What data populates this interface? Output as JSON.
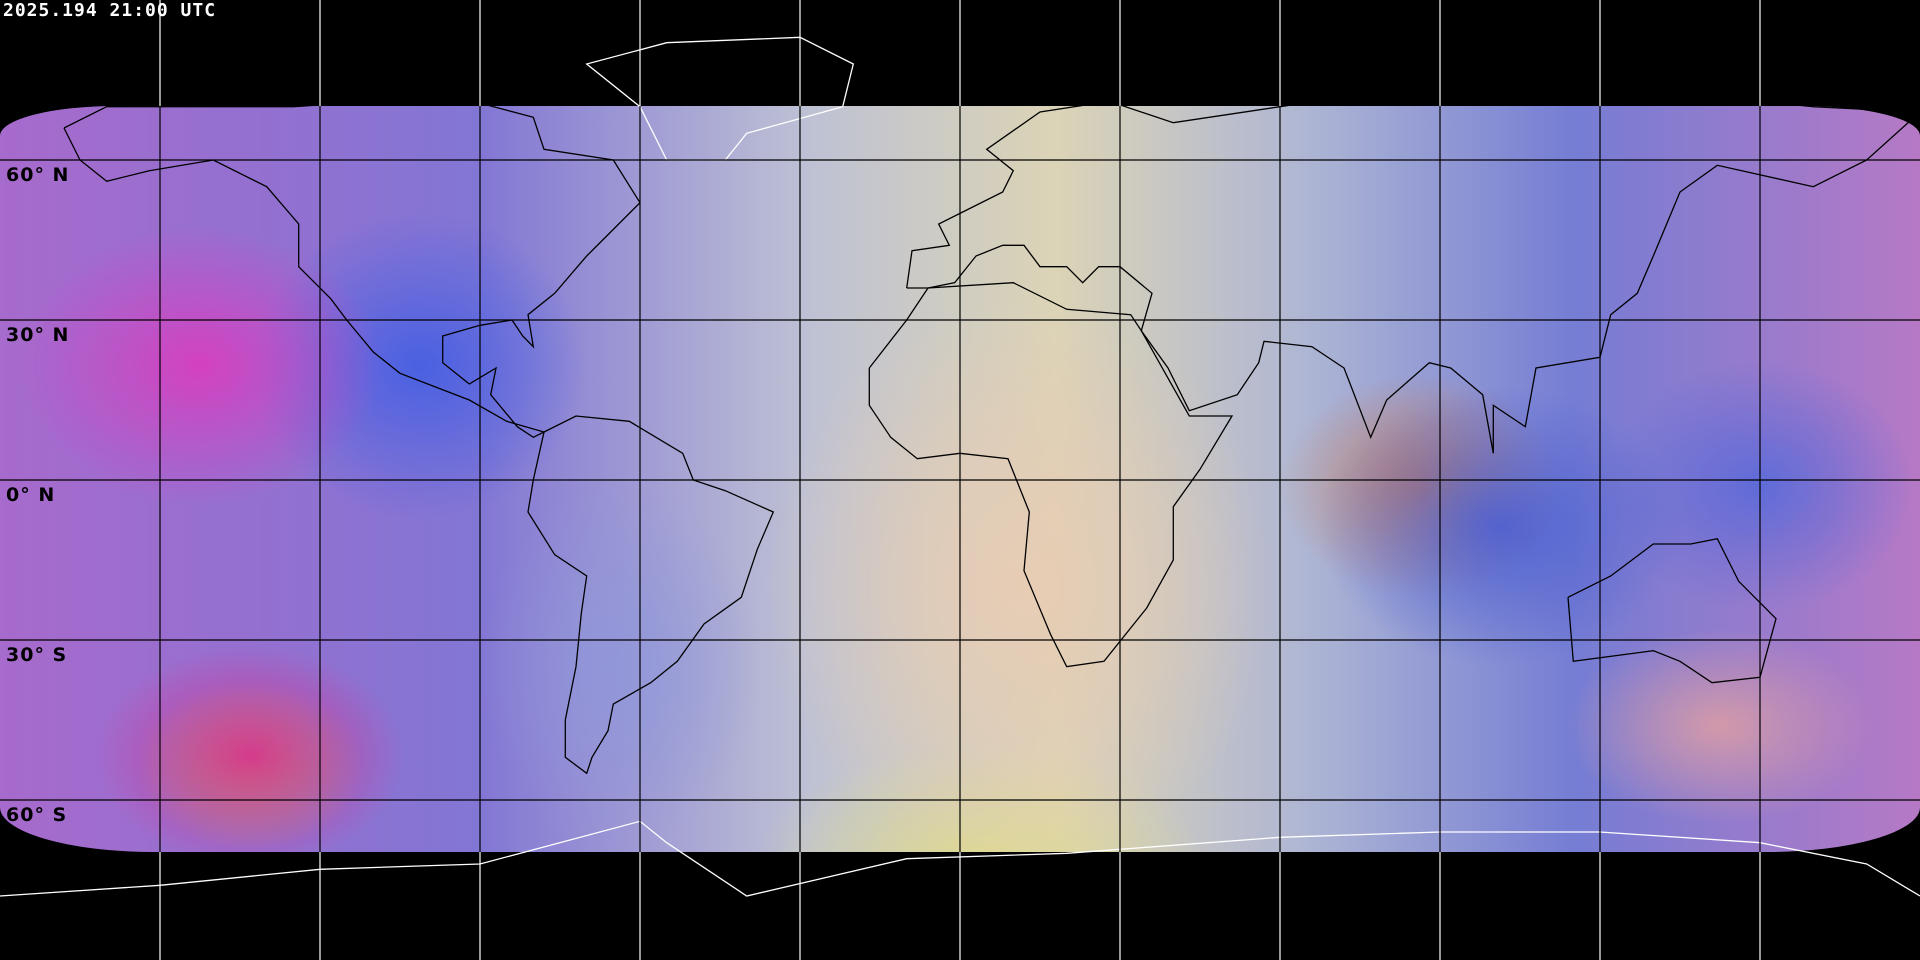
{
  "title": "2025.194 21:00 UTC",
  "projection": "equirectangular",
  "grid": {
    "lon_step_deg": 30,
    "lat_step_deg": 30,
    "line_color": "#000000",
    "polar_line_color": "#ffffff"
  },
  "lat_labels": [
    "60° N",
    "30° N",
    "0° N",
    "30° S",
    "60° S"
  ],
  "coastline_color_on_imagery": "#000000",
  "coastline_color_on_black": "#ffffff"
}
